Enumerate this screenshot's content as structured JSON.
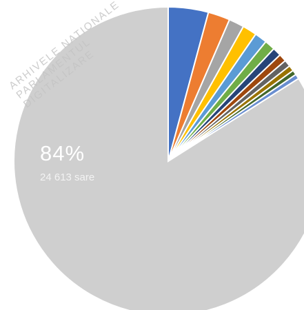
{
  "chart_data": {
    "type": "pie",
    "slices": [
      {
        "value": 4.2,
        "color": "#4472c4"
      },
      {
        "value": 2.3,
        "color": "#ed7d31"
      },
      {
        "value": 1.6,
        "color": "#a5a5a5"
      },
      {
        "value": 1.5,
        "color": "#ffc000"
      },
      {
        "value": 1.3,
        "color": "#5b9bd5"
      },
      {
        "value": 1.1,
        "color": "#70ad47"
      },
      {
        "value": 0.9,
        "color": "#264478"
      },
      {
        "value": 0.8,
        "color": "#9e480e"
      },
      {
        "value": 0.7,
        "color": "#636363"
      },
      {
        "value": 0.6,
        "color": "#997300"
      },
      {
        "value": 0.5,
        "color": "#43682b"
      },
      {
        "value": 0.5,
        "color": "#698ed0"
      },
      {
        "value": 84,
        "color": "#cfcfcf",
        "label": "84%",
        "sublabel": "24 613 sare"
      }
    ]
  },
  "watermark": {
    "lines": [
      "ARHIVELE NATIONALE",
      "PARLAMENTUL",
      "DIGITALIZARE"
    ]
  }
}
